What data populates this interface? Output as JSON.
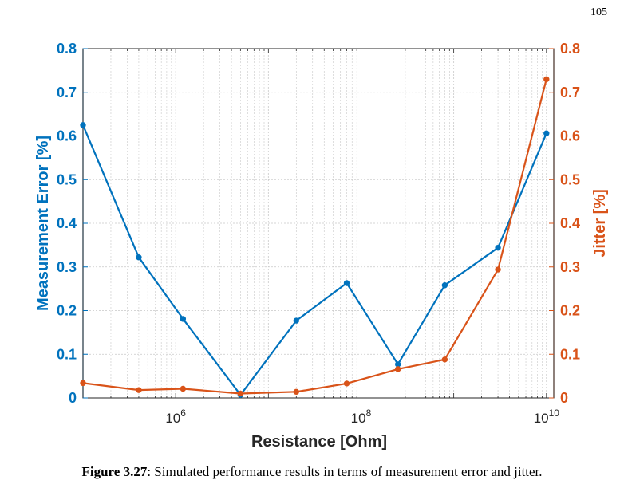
{
  "page": {
    "number": "105"
  },
  "caption": {
    "lead": "Figure 3.27",
    "text": ": Simulated performance results in terms of measurement error and jitter."
  },
  "colors": {
    "left_axis": "#0072BD",
    "right_axis": "#D95319",
    "grid": "#c8c8c8",
    "axis": "#262626"
  },
  "chart_data": {
    "type": "line",
    "xlabel": "Resistance [Ohm]",
    "ylabel_left": "Measurement Error [%]",
    "ylabel_right": "Jitter [%]",
    "x_scale": "log",
    "xlim": [
      100000,
      12000000000
    ],
    "ylim_left": [
      0,
      0.8
    ],
    "ylim_right": [
      0,
      0.8
    ],
    "grid": true,
    "x_ticks": [
      {
        "value": 1000000,
        "base": "10",
        "exp": "6"
      },
      {
        "value": 100000000,
        "base": "10",
        "exp": "8"
      },
      {
        "value": 10000000000,
        "base": "10",
        "exp": "10"
      }
    ],
    "y_ticks_left": [
      "0",
      "0.1",
      "0.2",
      "0.3",
      "0.4",
      "0.5",
      "0.6",
      "0.7",
      "0.8"
    ],
    "y_ticks_right": [
      "0",
      "0.1",
      "0.2",
      "0.3",
      "0.4",
      "0.5",
      "0.6",
      "0.7",
      "0.8"
    ],
    "x": [
      100000,
      400000,
      1200000,
      5000000,
      20000000,
      70000000,
      250000000,
      800000000,
      3000000000,
      10000000000
    ],
    "series": [
      {
        "axis": "left",
        "values": [
          0.625,
          0.322,
          0.181,
          0.007,
          0.177,
          0.263,
          0.077,
          0.258,
          0.344,
          0.606
        ]
      },
      {
        "axis": "right",
        "values": [
          0.034,
          0.018,
          0.021,
          0.01,
          0.014,
          0.033,
          0.066,
          0.088,
          0.294,
          0.73
        ]
      }
    ]
  }
}
